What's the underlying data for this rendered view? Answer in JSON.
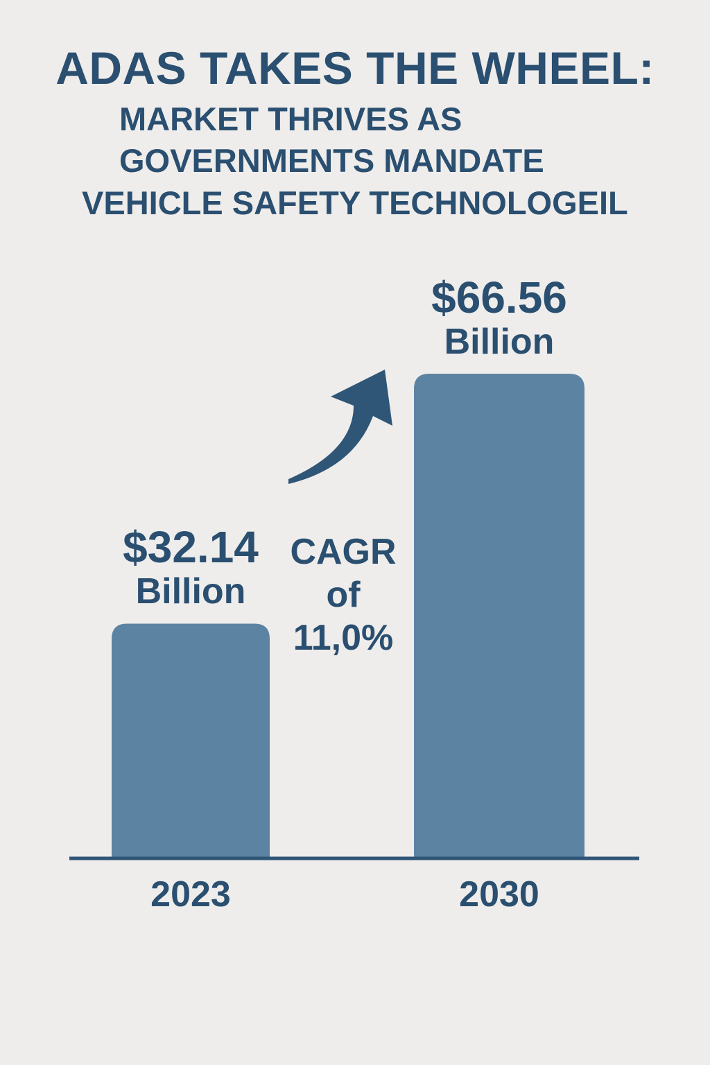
{
  "header": {
    "title": "ADAS TAKES THE WHEEL:",
    "subtitle_lines": [
      "MARKET THRIVES AS",
      "GOVERNMENTS MANDATE",
      "VEHICLE SAFETY TECHNOLOGEIL"
    ]
  },
  "annotation": {
    "cagr_line1": "CAGR",
    "cagr_line2": "of",
    "cagr_line3": "11,0%"
  },
  "colors": {
    "background": "#efedeb",
    "bar": "#5d83a2",
    "text": "#2a4f70",
    "arrow": "#2f5677",
    "axis": "#2f5677"
  },
  "icons": {
    "growth_arrow": "curved-up-right-arrow-icon"
  },
  "chart_data": {
    "type": "bar",
    "categories": [
      "2023",
      "2030"
    ],
    "values": [
      32.14,
      66.56
    ],
    "value_labels": [
      {
        "amount": "$32.14",
        "unit": "Billion"
      },
      {
        "amount": "$66.56",
        "unit": "Billion"
      }
    ],
    "title": "ADAS TAKES THE WHEEL:",
    "xlabel": "",
    "ylabel": "",
    "ylim": [
      0,
      80
    ],
    "grid": false,
    "legend": "none"
  }
}
